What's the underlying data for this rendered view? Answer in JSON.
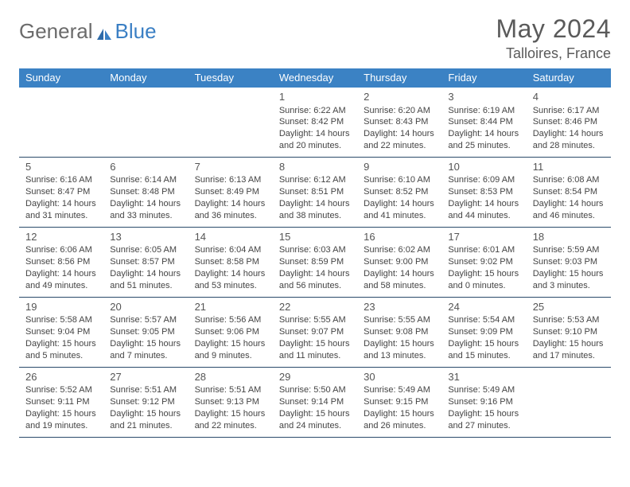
{
  "brand": {
    "general": "General",
    "blue": "Blue"
  },
  "title": "May 2024",
  "location": "Talloires, France",
  "colors": {
    "header_bg": "#3b82c4",
    "header_fg": "#ffffff",
    "row_border": "#2a4a6a",
    "text": "#444444",
    "title_fg": "#5a5a5a",
    "logo_gray": "#6b6b6b",
    "logo_blue": "#3a7fc4"
  },
  "dow": [
    "Sunday",
    "Monday",
    "Tuesday",
    "Wednesday",
    "Thursday",
    "Friday",
    "Saturday"
  ],
  "weeks": [
    [
      null,
      null,
      null,
      {
        "n": "1",
        "sunrise": "6:22 AM",
        "sunset": "8:42 PM",
        "dlh": "14",
        "dlm": "20"
      },
      {
        "n": "2",
        "sunrise": "6:20 AM",
        "sunset": "8:43 PM",
        "dlh": "14",
        "dlm": "22"
      },
      {
        "n": "3",
        "sunrise": "6:19 AM",
        "sunset": "8:44 PM",
        "dlh": "14",
        "dlm": "25"
      },
      {
        "n": "4",
        "sunrise": "6:17 AM",
        "sunset": "8:46 PM",
        "dlh": "14",
        "dlm": "28"
      }
    ],
    [
      {
        "n": "5",
        "sunrise": "6:16 AM",
        "sunset": "8:47 PM",
        "dlh": "14",
        "dlm": "31"
      },
      {
        "n": "6",
        "sunrise": "6:14 AM",
        "sunset": "8:48 PM",
        "dlh": "14",
        "dlm": "33"
      },
      {
        "n": "7",
        "sunrise": "6:13 AM",
        "sunset": "8:49 PM",
        "dlh": "14",
        "dlm": "36"
      },
      {
        "n": "8",
        "sunrise": "6:12 AM",
        "sunset": "8:51 PM",
        "dlh": "14",
        "dlm": "38"
      },
      {
        "n": "9",
        "sunrise": "6:10 AM",
        "sunset": "8:52 PM",
        "dlh": "14",
        "dlm": "41"
      },
      {
        "n": "10",
        "sunrise": "6:09 AM",
        "sunset": "8:53 PM",
        "dlh": "14",
        "dlm": "44"
      },
      {
        "n": "11",
        "sunrise": "6:08 AM",
        "sunset": "8:54 PM",
        "dlh": "14",
        "dlm": "46"
      }
    ],
    [
      {
        "n": "12",
        "sunrise": "6:06 AM",
        "sunset": "8:56 PM",
        "dlh": "14",
        "dlm": "49"
      },
      {
        "n": "13",
        "sunrise": "6:05 AM",
        "sunset": "8:57 PM",
        "dlh": "14",
        "dlm": "51"
      },
      {
        "n": "14",
        "sunrise": "6:04 AM",
        "sunset": "8:58 PM",
        "dlh": "14",
        "dlm": "53"
      },
      {
        "n": "15",
        "sunrise": "6:03 AM",
        "sunset": "8:59 PM",
        "dlh": "14",
        "dlm": "56"
      },
      {
        "n": "16",
        "sunrise": "6:02 AM",
        "sunset": "9:00 PM",
        "dlh": "14",
        "dlm": "58"
      },
      {
        "n": "17",
        "sunrise": "6:01 AM",
        "sunset": "9:02 PM",
        "dlh": "15",
        "dlm": "0"
      },
      {
        "n": "18",
        "sunrise": "5:59 AM",
        "sunset": "9:03 PM",
        "dlh": "15",
        "dlm": "3"
      }
    ],
    [
      {
        "n": "19",
        "sunrise": "5:58 AM",
        "sunset": "9:04 PM",
        "dlh": "15",
        "dlm": "5"
      },
      {
        "n": "20",
        "sunrise": "5:57 AM",
        "sunset": "9:05 PM",
        "dlh": "15",
        "dlm": "7"
      },
      {
        "n": "21",
        "sunrise": "5:56 AM",
        "sunset": "9:06 PM",
        "dlh": "15",
        "dlm": "9"
      },
      {
        "n": "22",
        "sunrise": "5:55 AM",
        "sunset": "9:07 PM",
        "dlh": "15",
        "dlm": "11"
      },
      {
        "n": "23",
        "sunrise": "5:55 AM",
        "sunset": "9:08 PM",
        "dlh": "15",
        "dlm": "13"
      },
      {
        "n": "24",
        "sunrise": "5:54 AM",
        "sunset": "9:09 PM",
        "dlh": "15",
        "dlm": "15"
      },
      {
        "n": "25",
        "sunrise": "5:53 AM",
        "sunset": "9:10 PM",
        "dlh": "15",
        "dlm": "17"
      }
    ],
    [
      {
        "n": "26",
        "sunrise": "5:52 AM",
        "sunset": "9:11 PM",
        "dlh": "15",
        "dlm": "19"
      },
      {
        "n": "27",
        "sunrise": "5:51 AM",
        "sunset": "9:12 PM",
        "dlh": "15",
        "dlm": "21"
      },
      {
        "n": "28",
        "sunrise": "5:51 AM",
        "sunset": "9:13 PM",
        "dlh": "15",
        "dlm": "22"
      },
      {
        "n": "29",
        "sunrise": "5:50 AM",
        "sunset": "9:14 PM",
        "dlh": "15",
        "dlm": "24"
      },
      {
        "n": "30",
        "sunrise": "5:49 AM",
        "sunset": "9:15 PM",
        "dlh": "15",
        "dlm": "26"
      },
      {
        "n": "31",
        "sunrise": "5:49 AM",
        "sunset": "9:16 PM",
        "dlh": "15",
        "dlm": "27"
      },
      null
    ]
  ],
  "labels": {
    "sunrise": "Sunrise:",
    "sunset": "Sunset:",
    "daylight_prefix": "Daylight:",
    "hours_word": "hours",
    "and_word": "and",
    "minutes_word": "minutes."
  }
}
